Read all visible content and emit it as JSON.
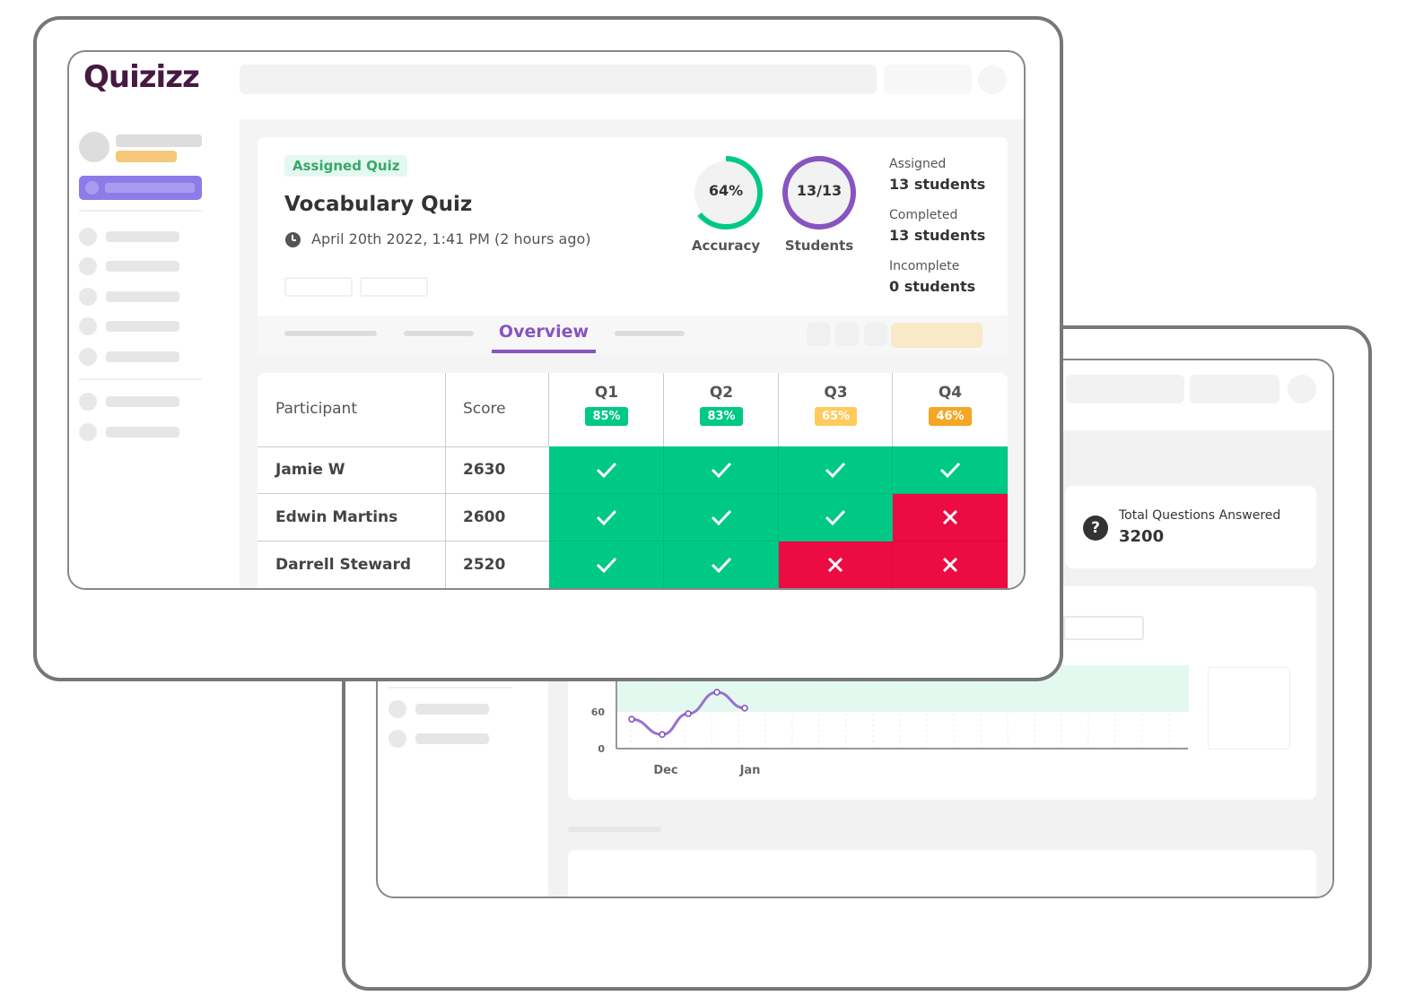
{
  "brand": {
    "logo": "Quizizz",
    "color": "#461a42"
  },
  "quiz": {
    "tag": "Assigned Quiz",
    "title": "Vocabulary Quiz",
    "date": "April 20th 2022, 1:41 PM (2 hours ago)"
  },
  "metrics": {
    "accuracy": {
      "value": "64%",
      "label": "Accuracy",
      "fraction": 0.64,
      "color": "#00c985"
    },
    "students": {
      "value": "13/13",
      "label": "Students",
      "fraction": 1,
      "color": "#8854c0"
    }
  },
  "summary": [
    {
      "label": "Assigned",
      "value": "13 students"
    },
    {
      "label": "Completed",
      "value": "13 students"
    },
    {
      "label": "Incomplete",
      "value": "0 students"
    }
  ],
  "tabs": {
    "active": "Overview"
  },
  "table": {
    "headers": {
      "participant": "Participant",
      "score": "Score"
    },
    "questions": [
      {
        "label": "Q1",
        "pct": "85%",
        "color": "#00c985"
      },
      {
        "label": "Q2",
        "pct": "83%",
        "color": "#00c985"
      },
      {
        "label": "Q3",
        "pct": "65%",
        "color": "#ffcb5c"
      },
      {
        "label": "Q4",
        "pct": "46%",
        "color": "#f5a623"
      }
    ],
    "rows": [
      {
        "name": "Jamie W",
        "score": "2630",
        "answers": [
          "correct",
          "correct",
          "correct",
          "correct"
        ]
      },
      {
        "name": "Edwin Martins",
        "score": "2600",
        "answers": [
          "correct",
          "correct",
          "correct",
          "incorrect"
        ]
      },
      {
        "name": "Darrell Steward",
        "score": "2520",
        "answers": [
          "correct",
          "correct",
          "incorrect",
          "incorrect"
        ]
      }
    ],
    "colors": {
      "correct": "#00c985",
      "incorrect": "#ec0b43"
    }
  },
  "back": {
    "stat": {
      "label": "Total Questions Answered",
      "value": "3200",
      "icon": "question-circle-icon"
    },
    "chart_data": {
      "type": "line",
      "x_labels": [
        "Dec",
        "Jan"
      ],
      "y_ticks": [
        "0",
        "60"
      ],
      "values": [
        48,
        23,
        57,
        92,
        66
      ],
      "band": [
        60,
        136
      ],
      "ylim": [
        0,
        136
      ]
    }
  }
}
